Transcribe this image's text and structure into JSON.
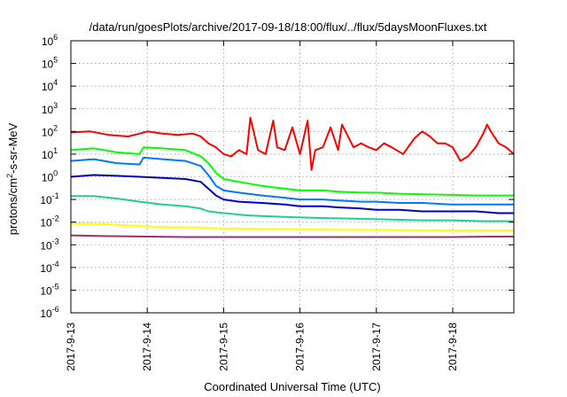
{
  "chart_data": {
    "type": "line",
    "title": "/data/run/goesPlots/archive/2017-09-18/18:00/flux/../flux/5daysMoonFluxes.txt",
    "xlabel": "Coordinated Universal Time (UTC)",
    "ylabel": {
      "base": "protons/cm",
      "exp": "2",
      "suffix": "-s-sr-MeV"
    },
    "y_scale": "log",
    "ylim": [
      1e-06,
      1000000.0
    ],
    "xlim_days": [
      0,
      5.8
    ],
    "x_start": "2017-09-13",
    "grid": true,
    "legend": "none",
    "x_ticks": [
      {
        "day": 0,
        "label": "2017-9-13"
      },
      {
        "day": 1,
        "label": "2017-9-14"
      },
      {
        "day": 2,
        "label": "2017-9-15"
      },
      {
        "day": 3,
        "label": "2017-9-16"
      },
      {
        "day": 4,
        "label": "2017-9-17"
      },
      {
        "day": 5,
        "label": "2017-9-18"
      }
    ],
    "y_ticks": [
      {
        "exp": -6,
        "label": "10",
        "sup": "-6"
      },
      {
        "exp": -5,
        "label": "10",
        "sup": "-5"
      },
      {
        "exp": -4,
        "label": "10",
        "sup": "-4"
      },
      {
        "exp": -3,
        "label": "10",
        "sup": "-3"
      },
      {
        "exp": -2,
        "label": "10",
        "sup": "-2"
      },
      {
        "exp": -1,
        "label": "10",
        "sup": "-1"
      },
      {
        "exp": 0,
        "label": "10",
        "sup": "0"
      },
      {
        "exp": 1,
        "label": "10",
        "sup": "1"
      },
      {
        "exp": 2,
        "label": "10",
        "sup": "2"
      },
      {
        "exp": 3,
        "label": "10",
        "sup": "3"
      },
      {
        "exp": 4,
        "label": "10",
        "sup": "4"
      },
      {
        "exp": 5,
        "label": "10",
        "sup": "5"
      },
      {
        "exp": 6,
        "label": "10",
        "sup": "6"
      }
    ],
    "series": [
      {
        "color": "#ff0000",
        "points": [
          [
            0,
            90
          ],
          [
            0.25,
            100
          ],
          [
            0.5,
            70
          ],
          [
            0.75,
            60
          ],
          [
            0.9,
            80
          ],
          [
            1.0,
            100
          ],
          [
            1.2,
            80
          ],
          [
            1.4,
            70
          ],
          [
            1.6,
            80
          ],
          [
            1.7,
            60
          ],
          [
            1.8,
            30
          ],
          [
            1.9,
            20
          ],
          [
            2.0,
            10
          ],
          [
            2.1,
            8
          ],
          [
            2.2,
            15
          ],
          [
            2.3,
            10
          ],
          [
            2.35,
            400
          ],
          [
            2.45,
            15
          ],
          [
            2.55,
            10
          ],
          [
            2.65,
            300
          ],
          [
            2.7,
            20
          ],
          [
            2.8,
            15
          ],
          [
            2.9,
            150
          ],
          [
            3.0,
            10
          ],
          [
            3.1,
            300
          ],
          [
            3.15,
            2
          ],
          [
            3.2,
            15
          ],
          [
            3.3,
            20
          ],
          [
            3.4,
            150
          ],
          [
            3.5,
            15
          ],
          [
            3.55,
            200
          ],
          [
            3.7,
            20
          ],
          [
            3.8,
            30
          ],
          [
            3.9,
            20
          ],
          [
            4.0,
            15
          ],
          [
            4.1,
            30
          ],
          [
            4.2,
            20
          ],
          [
            4.35,
            10
          ],
          [
            4.5,
            50
          ],
          [
            4.6,
            100
          ],
          [
            4.7,
            60
          ],
          [
            4.8,
            30
          ],
          [
            4.9,
            30
          ],
          [
            5.0,
            20
          ],
          [
            5.1,
            5
          ],
          [
            5.2,
            8
          ],
          [
            5.3,
            20
          ],
          [
            5.4,
            80
          ],
          [
            5.45,
            200
          ],
          [
            5.5,
            100
          ],
          [
            5.6,
            30
          ],
          [
            5.7,
            20
          ],
          [
            5.8,
            10
          ]
        ]
      },
      {
        "color": "#00ff00",
        "points": [
          [
            0,
            15
          ],
          [
            0.3,
            18
          ],
          [
            0.6,
            12
          ],
          [
            0.9,
            10
          ],
          [
            0.95,
            20
          ],
          [
            1.2,
            18
          ],
          [
            1.5,
            15
          ],
          [
            1.7,
            8
          ],
          [
            1.8,
            4
          ],
          [
            1.9,
            1.5
          ],
          [
            2.0,
            0.8
          ],
          [
            2.2,
            0.6
          ],
          [
            2.5,
            0.4
          ],
          [
            2.8,
            0.3
          ],
          [
            3.0,
            0.25
          ],
          [
            3.3,
            0.25
          ],
          [
            3.5,
            0.22
          ],
          [
            3.8,
            0.2
          ],
          [
            4.0,
            0.2
          ],
          [
            4.3,
            0.18
          ],
          [
            4.6,
            0.17
          ],
          [
            5.0,
            0.16
          ],
          [
            5.3,
            0.15
          ],
          [
            5.6,
            0.15
          ],
          [
            5.8,
            0.15
          ]
        ]
      },
      {
        "color": "#0077ff",
        "points": [
          [
            0,
            5
          ],
          [
            0.3,
            6
          ],
          [
            0.6,
            4
          ],
          [
            0.9,
            3.5
          ],
          [
            0.95,
            7
          ],
          [
            1.2,
            6
          ],
          [
            1.5,
            5
          ],
          [
            1.7,
            3
          ],
          [
            1.8,
            1.2
          ],
          [
            1.9,
            0.4
          ],
          [
            2.0,
            0.25
          ],
          [
            2.2,
            0.2
          ],
          [
            2.5,
            0.15
          ],
          [
            2.8,
            0.12
          ],
          [
            3.0,
            0.1
          ],
          [
            3.3,
            0.1
          ],
          [
            3.5,
            0.09
          ],
          [
            3.8,
            0.08
          ],
          [
            4.0,
            0.08
          ],
          [
            4.3,
            0.07
          ],
          [
            4.6,
            0.07
          ],
          [
            5.0,
            0.06
          ],
          [
            5.3,
            0.06
          ],
          [
            5.6,
            0.06
          ],
          [
            5.8,
            0.06
          ]
        ]
      },
      {
        "color": "#0000cc",
        "points": [
          [
            0,
            1.0
          ],
          [
            0.3,
            1.2
          ],
          [
            0.6,
            1.1
          ],
          [
            0.9,
            1.0
          ],
          [
            1.2,
            0.9
          ],
          [
            1.5,
            0.8
          ],
          [
            1.7,
            0.6
          ],
          [
            1.8,
            0.3
          ],
          [
            1.9,
            0.15
          ],
          [
            2.0,
            0.1
          ],
          [
            2.2,
            0.08
          ],
          [
            2.5,
            0.07
          ],
          [
            2.8,
            0.06
          ],
          [
            3.0,
            0.05
          ],
          [
            3.3,
            0.05
          ],
          [
            3.5,
            0.045
          ],
          [
            3.8,
            0.04
          ],
          [
            4.0,
            0.035
          ],
          [
            4.3,
            0.035
          ],
          [
            4.6,
            0.03
          ],
          [
            5.0,
            0.03
          ],
          [
            5.3,
            0.03
          ],
          [
            5.6,
            0.025
          ],
          [
            5.8,
            0.025
          ]
        ]
      },
      {
        "color": "#22cc99",
        "points": [
          [
            0,
            0.14
          ],
          [
            0.3,
            0.14
          ],
          [
            0.6,
            0.11
          ],
          [
            0.9,
            0.08
          ],
          [
            1.2,
            0.06
          ],
          [
            1.5,
            0.05
          ],
          [
            1.7,
            0.04
          ],
          [
            1.8,
            0.03
          ],
          [
            2.0,
            0.025
          ],
          [
            2.3,
            0.02
          ],
          [
            2.6,
            0.018
          ],
          [
            3.0,
            0.016
          ],
          [
            3.4,
            0.015
          ],
          [
            3.8,
            0.014
          ],
          [
            4.2,
            0.013
          ],
          [
            4.6,
            0.012
          ],
          [
            5.0,
            0.012
          ],
          [
            5.4,
            0.011
          ],
          [
            5.8,
            0.011
          ]
        ]
      },
      {
        "color": "#ffff00",
        "points": [
          [
            0,
            0.009
          ],
          [
            0.5,
            0.008
          ],
          [
            1.0,
            0.0065
          ],
          [
            1.5,
            0.0058
          ],
          [
            2.0,
            0.0053
          ],
          [
            2.5,
            0.005
          ],
          [
            3.0,
            0.0048
          ],
          [
            3.5,
            0.0046
          ],
          [
            4.0,
            0.0045
          ],
          [
            4.5,
            0.0044
          ],
          [
            5.0,
            0.0043
          ],
          [
            5.5,
            0.0043
          ],
          [
            5.8,
            0.0043
          ]
        ]
      },
      {
        "color": "#993366",
        "points": [
          [
            0,
            0.0026
          ],
          [
            0.5,
            0.0024
          ],
          [
            1.0,
            0.0023
          ],
          [
            1.5,
            0.0022
          ],
          [
            2.0,
            0.0022
          ],
          [
            2.5,
            0.0022
          ],
          [
            3.0,
            0.0022
          ],
          [
            3.5,
            0.0022
          ],
          [
            4.0,
            0.0022
          ],
          [
            4.5,
            0.0022
          ],
          [
            5.0,
            0.0022
          ],
          [
            5.5,
            0.0023
          ],
          [
            5.8,
            0.0023
          ]
        ]
      }
    ]
  }
}
